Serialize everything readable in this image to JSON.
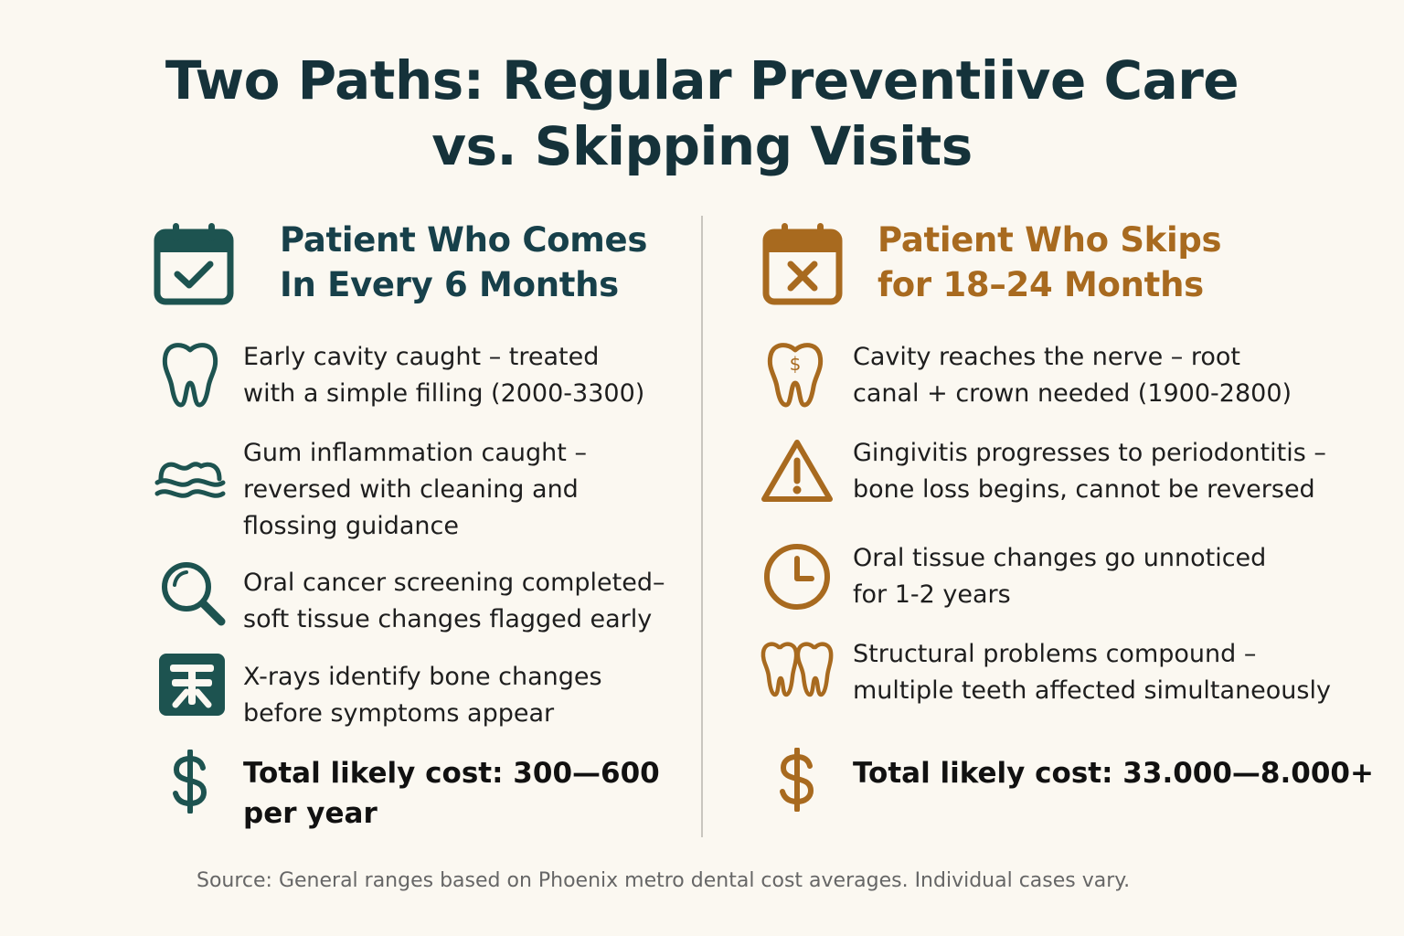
{
  "title": {
    "line1": "Two Paths: Regular Preventiive Care",
    "line2": "vs. Skipping Visits"
  },
  "colors": {
    "background": "#fbf8f1",
    "title": "#15323a",
    "left_accent": "#1d5350",
    "right_accent": "#a86a1f",
    "divider": "#c9c6bf"
  },
  "left": {
    "heading": {
      "line1": "Patient Who Comes",
      "line2": "In Every 6 Months",
      "icon": "calendar-check-icon"
    },
    "items": [
      {
        "icon": "tooth-icon",
        "line1": "Early cavity caught – treated",
        "line2": "with a simple filling (2000-3300)"
      },
      {
        "icon": "gum-icon",
        "line1": "Gum inflammation caught –",
        "line2": "reversed with cleaning and",
        "line3": "flossing guidance"
      },
      {
        "icon": "magnifier-icon",
        "line1": "Oral cancer screening completed–",
        "line2": "soft tissue changes flagged early"
      },
      {
        "icon": "xray-icon",
        "line1": "X-rays identify bone changes",
        "line2": "before symptoms appear"
      }
    ],
    "cost": {
      "icon": "dollar-icon",
      "line1": "Total likely cost: 300—600",
      "line2": "per year"
    }
  },
  "right": {
    "heading": {
      "line1": "Patient Who Skips",
      "line2": "for 18–24 Months",
      "icon": "calendar-x-icon"
    },
    "items": [
      {
        "icon": "tooth-dollar-icon",
        "line1": "Cavity reaches the nerve – root",
        "line2": "canal + crown needed (1900-2800)"
      },
      {
        "icon": "warning-icon",
        "line1": "Gingivitis progresses to periodontitis –",
        "line2": "bone loss begins, cannot be reversed"
      },
      {
        "icon": "clock-icon",
        "line1": "Oral tissue changes go unnoticed",
        "line2": "for 1-2 years"
      },
      {
        "icon": "teeth-icon",
        "line1": "Structural problems compound –",
        "line2": "multiple teeth affected simultaneously"
      }
    ],
    "cost": {
      "icon": "dollar-icon",
      "line1": "Total likely cost: 33.000—8.000+"
    }
  },
  "source": "Source: General ranges based on Phoenix metro dental cost averages. Individual cases vary."
}
